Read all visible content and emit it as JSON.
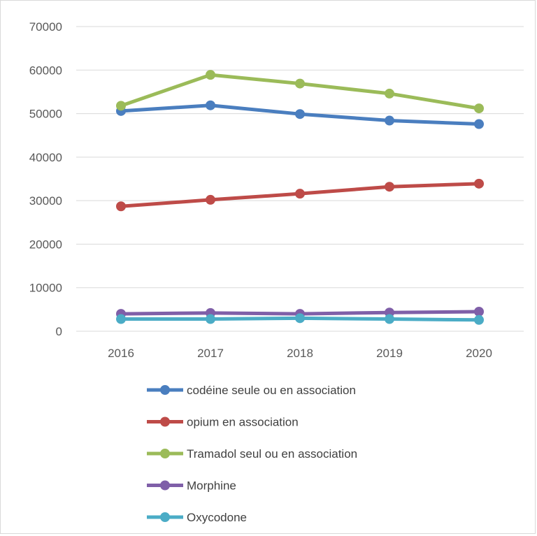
{
  "chart_data": {
    "type": "line",
    "title": "",
    "xlabel": "",
    "ylabel": "",
    "categories": [
      "2016",
      "2017",
      "2018",
      "2019",
      "2020"
    ],
    "ylim": [
      0,
      70000
    ],
    "yticks": [
      0,
      10000,
      20000,
      30000,
      40000,
      50000,
      60000,
      70000
    ],
    "grid": "horizontal",
    "legend_position": "bottom",
    "series": [
      {
        "name": "codéine seule ou en association",
        "color": "#4a7ebf",
        "values": [
          50600,
          51900,
          49900,
          48400,
          47600
        ]
      },
      {
        "name": "opium en association",
        "color": "#be4b48",
        "values": [
          28700,
          30200,
          31600,
          33200,
          33900
        ]
      },
      {
        "name": "Tramadol seul ou en association",
        "color": "#9bbb59",
        "values": [
          51800,
          58900,
          56900,
          54600,
          51200
        ]
      },
      {
        "name": "Morphine",
        "color": "#7f5fa8",
        "values": [
          4000,
          4200,
          4000,
          4300,
          4500
        ]
      },
      {
        "name": "Oxycodone",
        "color": "#4bacc6",
        "values": [
          2800,
          2800,
          3000,
          2800,
          2600
        ]
      }
    ]
  }
}
